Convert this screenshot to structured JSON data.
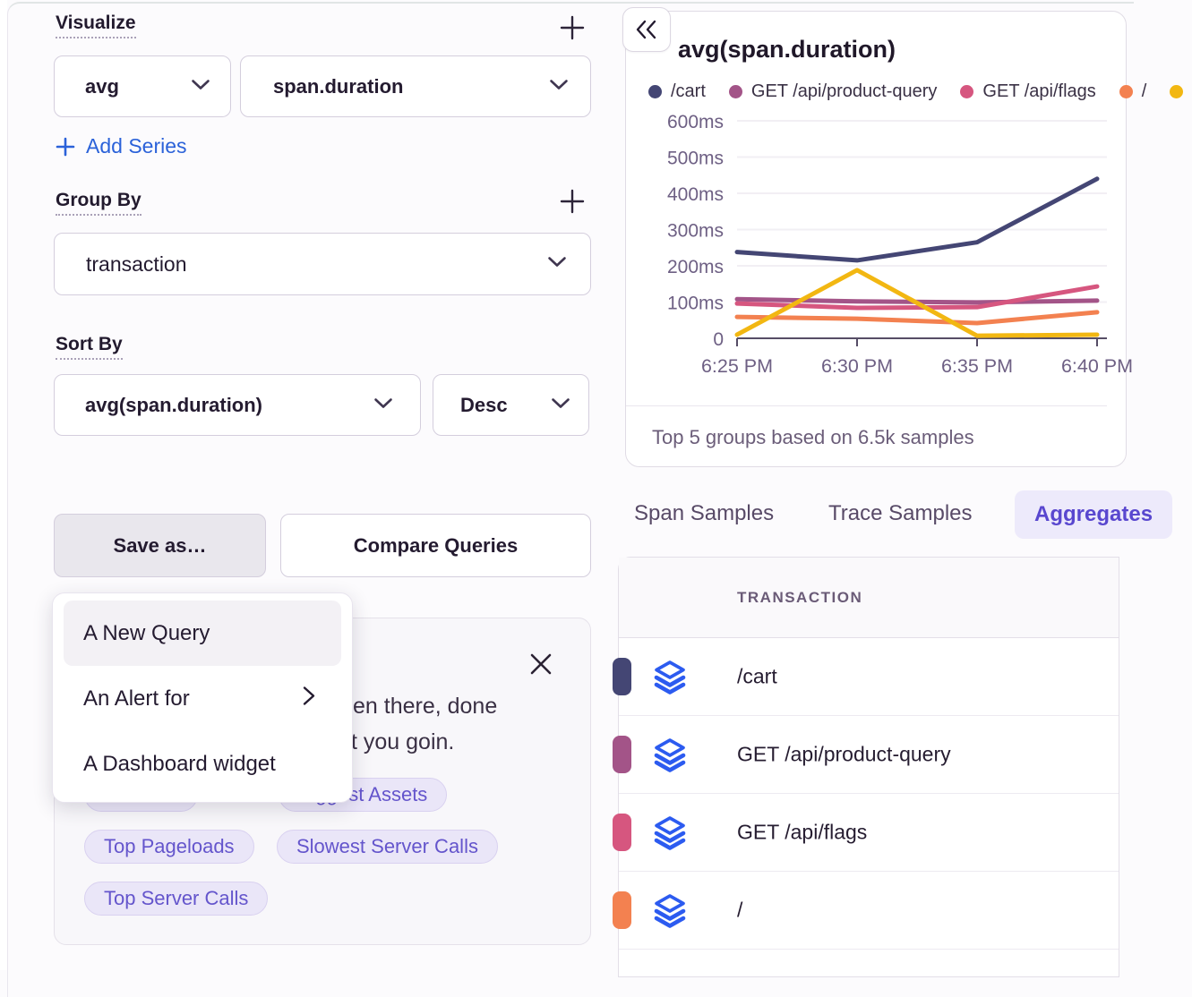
{
  "left_panel": {
    "visualize": {
      "heading": "Visualize",
      "aggregate_value": "avg",
      "field_value": "span.duration",
      "add_series_label": "Add Series"
    },
    "group_by": {
      "heading": "Group By",
      "value": "transaction"
    },
    "sort_by": {
      "heading": "Sort By",
      "field_value": "avg(span.duration)",
      "direction_value": "Desc"
    },
    "save_as_label": "Save as…",
    "compare_label": "Compare Queries",
    "save_menu": [
      {
        "label": "A New Query",
        "hovered": true,
        "submenu": false
      },
      {
        "label": "An Alert for",
        "hovered": false,
        "submenu": true
      },
      {
        "label": "A Dashboard widget",
        "hovered": false,
        "submenu": false
      }
    ],
    "callout": {
      "visible_text_line1": "en there, done",
      "visible_text_line2": "t you goin.",
      "pills": [
        {
          "label": ""
        },
        {
          "label": "Biggest Assets"
        },
        {
          "label": "Top Pageloads"
        },
        {
          "label": "Slowest Server Calls"
        },
        {
          "label": "Top Server Calls"
        }
      ]
    }
  },
  "chart_panel": {
    "title": "avg(span.duration)",
    "footer": "Top 5 groups based on 6.5k samples"
  },
  "chart_data": {
    "type": "line",
    "title": "avg(span.duration)",
    "xlabel": "",
    "ylabel": "",
    "unit": "ms",
    "x": [
      "6:25 PM",
      "6:30 PM",
      "6:35 PM",
      "6:40 PM"
    ],
    "yticks": [
      0,
      100,
      200,
      300,
      400,
      500,
      600
    ],
    "ylim": [
      0,
      650
    ],
    "grid": true,
    "legend_position": "top",
    "series": [
      {
        "name": "/cart",
        "color": "#444674",
        "values": [
          238,
          215,
          265,
          440
        ]
      },
      {
        "name": "GET /api/product-query",
        "color": "#a35488",
        "values": [
          108,
          102,
          99,
          104
        ]
      },
      {
        "name": "GET /api/flags",
        "color": "#d6567f",
        "values": [
          96,
          84,
          86,
          143
        ]
      },
      {
        "name": "/",
        "color": "#f38150",
        "values": [
          59,
          54,
          42,
          72
        ]
      },
      {
        "name": "",
        "color": "#f2b712",
        "values": [
          10,
          188,
          7,
          10
        ]
      }
    ]
  },
  "tabs": {
    "items": [
      "Span Samples",
      "Trace Samples",
      "Aggregates"
    ],
    "active": "Aggregates"
  },
  "table": {
    "header": "TRANSACTION",
    "rows": [
      {
        "transaction": "/cart",
        "color": "#444674"
      },
      {
        "transaction": "GET /api/product-query",
        "color": "#a35488"
      },
      {
        "transaction": "GET /api/flags",
        "color": "#d6567f"
      },
      {
        "transaction": "/",
        "color": "#f38150"
      }
    ]
  }
}
